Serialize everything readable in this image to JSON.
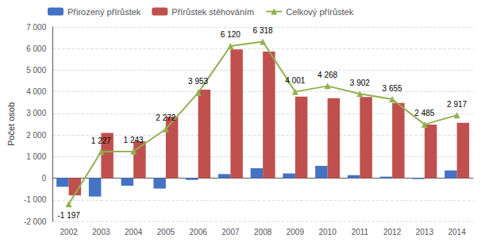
{
  "chart_data": {
    "type": "bar",
    "categories": [
      "2002",
      "2003",
      "2004",
      "2005",
      "2006",
      "2007",
      "2008",
      "2009",
      "2010",
      "2011",
      "2012",
      "2013",
      "2014"
    ],
    "series": [
      {
        "name": "Přirozený přírůstek",
        "type": "bar",
        "color": "#4472c4",
        "values": [
          -400,
          -850,
          -350,
          -480,
          -80,
          190,
          460,
          220,
          570,
          140,
          70,
          -40,
          360
        ]
      },
      {
        "name": "Přírůstek stěhováním",
        "type": "bar",
        "color": "#c0504d",
        "values": [
          -797,
          2100,
          1700,
          2850,
          4100,
          5960,
          5860,
          3780,
          3700,
          3760,
          3480,
          2480,
          2560
        ]
      },
      {
        "name": "Celkový přírůstek",
        "type": "line",
        "color": "#92b050",
        "marker": "triangle",
        "data_labels": true,
        "values": [
          -1197,
          1227,
          1243,
          2272,
          3953,
          6120,
          6318,
          4001,
          4268,
          3902,
          3655,
          2485,
          2917
        ],
        "value_labels": [
          "-1 197",
          "1 227",
          "1 243",
          "2 272",
          "3 953",
          "6 120",
          "6 318",
          "4 001",
          "4 268",
          "3 902",
          "3 655",
          "2 485",
          "2 917"
        ]
      }
    ],
    "ylabel": "Počet osob",
    "ylim": [
      -2000,
      7000
    ],
    "yticks": [
      {
        "value": -2000,
        "label": "-2 000"
      },
      {
        "value": -1000,
        "label": "-1 000"
      },
      0,
      {
        "value": 1000,
        "label": "1 000"
      },
      {
        "value": 2000,
        "label": "2 000"
      },
      {
        "value": 3000,
        "label": "3 000"
      },
      {
        "value": 4000,
        "label": "4 000"
      },
      {
        "value": 5000,
        "label": "5 000"
      },
      {
        "value": 6000,
        "label": "6 000"
      },
      {
        "value": 7000,
        "label": "7 000"
      }
    ],
    "grid": true,
    "legend": "upper left"
  }
}
